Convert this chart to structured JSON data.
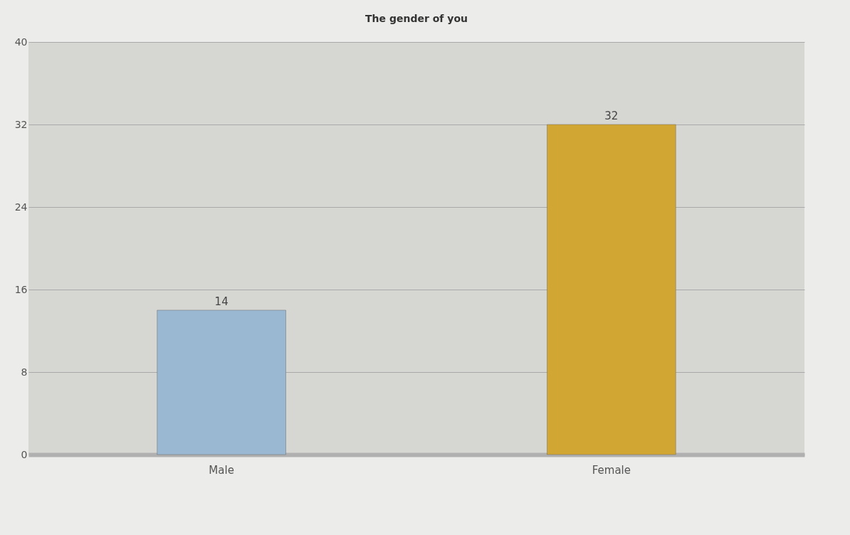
{
  "chart_data": {
    "type": "bar",
    "title": "The gender of you",
    "categories": [
      "Male",
      "Female"
    ],
    "values": [
      14,
      32
    ],
    "colors": [
      "#9bb8d2",
      "#d2a633"
    ],
    "ylim": [
      0,
      40
    ],
    "yticks": [
      0,
      8,
      16,
      24,
      32,
      40
    ],
    "grid": "y",
    "data_labels": true
  }
}
